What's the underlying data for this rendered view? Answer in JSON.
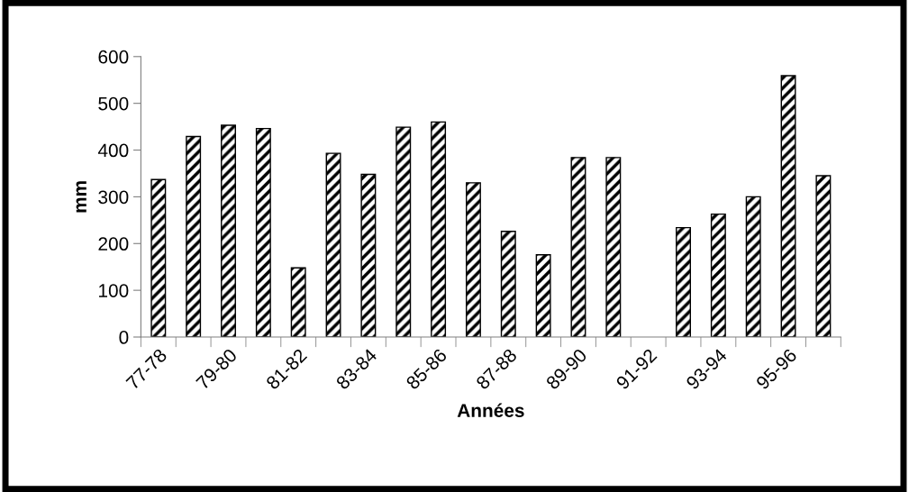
{
  "chart_data": {
    "type": "bar",
    "xlabel": "Années",
    "ylabel": "mm",
    "categories": [
      "77-78",
      null,
      "79-80",
      null,
      "81-82",
      null,
      "83-84",
      null,
      "85-86",
      null,
      "87-88",
      null,
      "89-90",
      null,
      "91-92",
      null,
      "93-94",
      null,
      "95-96",
      null
    ],
    "values": [
      337,
      429,
      453,
      446,
      148,
      393,
      348,
      449,
      460,
      330,
      226,
      176,
      384,
      384,
      null,
      234,
      263,
      300,
      559,
      345
    ],
    "color": "#000000",
    "ylim": [
      0,
      600
    ],
    "yticks": [
      0,
      100,
      200,
      300,
      400,
      500,
      600
    ],
    "grid": false,
    "legend": false
  }
}
